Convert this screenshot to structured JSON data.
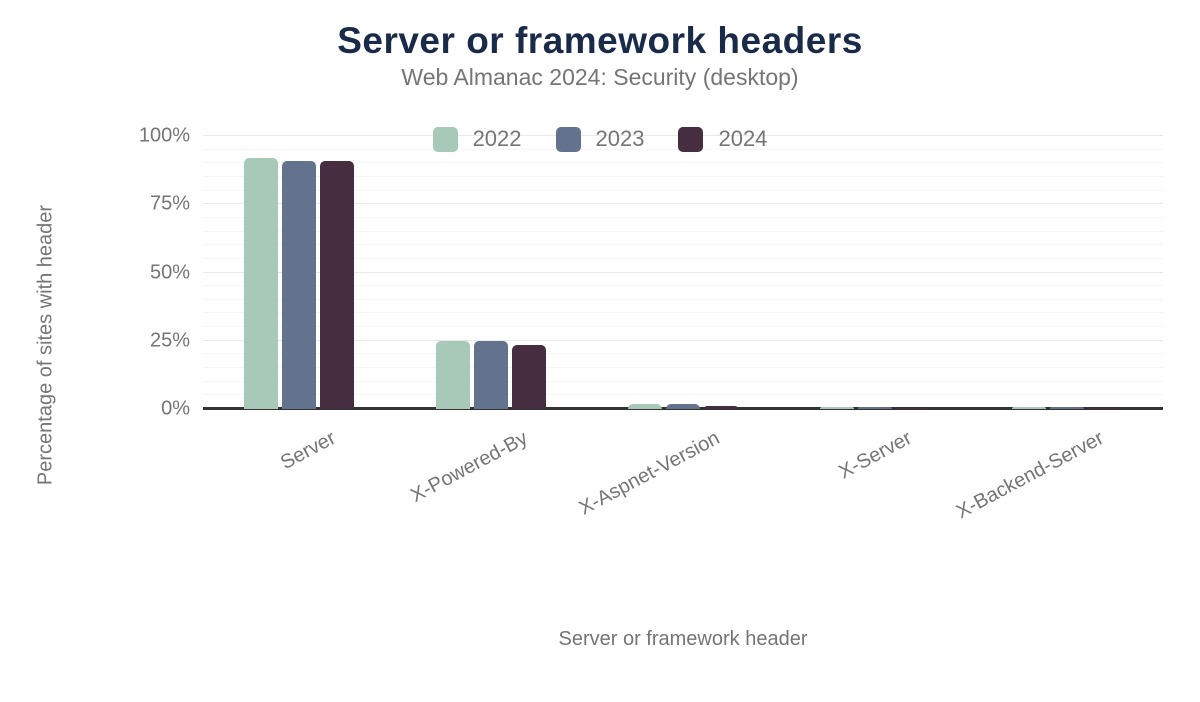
{
  "title": "Server or framework headers",
  "subtitle": "Web Almanac 2024: Security (desktop)",
  "colors": {
    "title_text": "#1a2b49",
    "muted_text": "#757575",
    "axis_line": "#333333",
    "gridline_major": "#e9e9e9",
    "gridline_minor": "#f6f6f6",
    "background": "#ffffff"
  },
  "chart_data": {
    "type": "bar",
    "title": "Server or framework headers",
    "subtitle": "Web Almanac 2024: Security (desktop)",
    "xlabel": "Server or framework header",
    "ylabel": "Percentage of sites with header",
    "categories": [
      "Server",
      "X-Powered-By",
      "X-Aspnet-Version",
      "X-Server",
      "X-Backend-Server"
    ],
    "series": [
      {
        "name": "2022",
        "color": "#a8c9b8",
        "values": [
          92,
          25,
          2.0,
          0.8,
          0.8
        ]
      },
      {
        "name": "2023",
        "color": "#63728d",
        "values": [
          91,
          25,
          1.9,
          0.9,
          0.8
        ]
      },
      {
        "name": "2024",
        "color": "#462e40",
        "values": [
          91,
          23.5,
          1.2,
          0.5,
          0.5
        ]
      }
    ],
    "ylim": [
      0,
      100
    ],
    "yticks": [
      0,
      25,
      50,
      75,
      100
    ],
    "ytick_labels": [
      "0%",
      "25%",
      "50%",
      "75%",
      "100%"
    ],
    "minor_tick_step": 5,
    "legend_position": "top-center",
    "grid": true
  }
}
